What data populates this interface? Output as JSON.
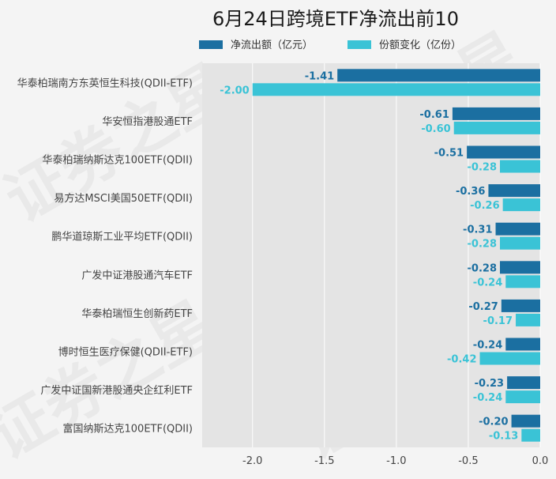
{
  "chart_data": {
    "type": "bar",
    "orientation": "horizontal",
    "title": "6月24日跨境ETF净流出前10",
    "legend_position": "top",
    "grid": true,
    "xlim": [
      -2.35,
      0
    ],
    "xticks": [
      -2.0,
      -1.5,
      -1.0,
      -0.5,
      0.0
    ],
    "xtick_labels": [
      "-2.0",
      "-1.5",
      "-1.0",
      "-0.5",
      "0.0"
    ],
    "categories": [
      "华泰柏瑞南方东英恒生科技(QDII-ETF)",
      "华安恒指港股通ETF",
      "华泰柏瑞纳斯达克100ETF(QDII)",
      "易方达MSCI美国50ETF(QDII)",
      "鹏华道琼斯工业平均ETF(QDII)",
      "广发中证港股通汽车ETF",
      "华泰柏瑞恒生创新药ETF",
      "博时恒生医疗保健(QDII-ETF)",
      "广发中证国新港股通央企红利ETF",
      "富国纳斯达克100ETF(QDII)"
    ],
    "series": [
      {
        "name": "净流出额（亿元）",
        "color": "#1b6fa1",
        "values": [
          -1.41,
          -0.61,
          -0.51,
          -0.36,
          -0.31,
          -0.28,
          -0.27,
          -0.24,
          -0.23,
          -0.2
        ],
        "labels": [
          "-1.41",
          "-0.61",
          "-0.51",
          "-0.36",
          "-0.31",
          "-0.28",
          "-0.27",
          "-0.24",
          "-0.23",
          "-0.20"
        ]
      },
      {
        "name": "份额变化（亿份）",
        "color": "#3ac3d6",
        "values": [
          -2.0,
          -0.6,
          -0.28,
          -0.26,
          -0.28,
          -0.24,
          -0.17,
          -0.42,
          -0.24,
          -0.13
        ],
        "labels": [
          "-2.00",
          "-0.60",
          "-0.28",
          "-0.26",
          "-0.28",
          "-0.24",
          "-0.17",
          "-0.42",
          "-0.24",
          "-0.13"
        ]
      }
    ]
  },
  "watermark": "证券之星"
}
